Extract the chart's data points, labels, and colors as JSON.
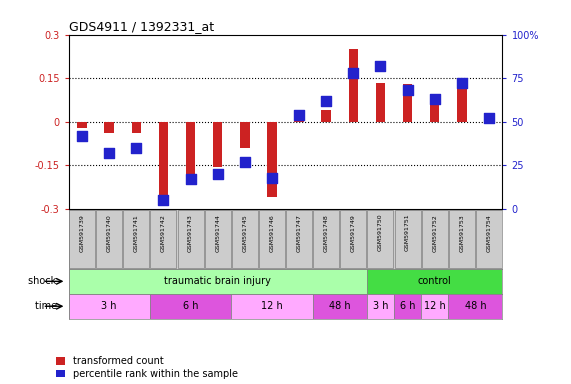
{
  "title": "GDS4911 / 1392331_at",
  "samples": [
    "GSM591739",
    "GSM591740",
    "GSM591741",
    "GSM591742",
    "GSM591743",
    "GSM591744",
    "GSM591745",
    "GSM591746",
    "GSM591747",
    "GSM591748",
    "GSM591749",
    "GSM591750",
    "GSM591751",
    "GSM591752",
    "GSM591753",
    "GSM591754"
  ],
  "red_values": [
    -0.02,
    -0.04,
    -0.04,
    -0.28,
    -0.21,
    -0.155,
    -0.09,
    -0.26,
    0.02,
    0.04,
    0.25,
    0.135,
    0.13,
    0.09,
    0.12,
    0.01
  ],
  "blue_values_pct": [
    42,
    32,
    35,
    5,
    17,
    20,
    27,
    18,
    54,
    62,
    78,
    82,
    68,
    63,
    72,
    52
  ],
  "ylim_left": [
    -0.3,
    0.3
  ],
  "ylim_right": [
    0,
    100
  ],
  "yticks_left": [
    -0.3,
    -0.15,
    0.0,
    0.15,
    0.3
  ],
  "ytick_left_labels": [
    "-0.3",
    "-0.15",
    "0",
    "0.15",
    "0.3"
  ],
  "yticks_right": [
    0,
    25,
    50,
    75,
    100
  ],
  "ytick_right_labels": [
    "0",
    "25",
    "50",
    "75",
    "100%"
  ],
  "hlines": [
    0.15,
    0.0,
    -0.15
  ],
  "red_color": "#cc2222",
  "blue_color": "#2222cc",
  "shock_row": [
    {
      "label": "traumatic brain injury",
      "start": 0,
      "end": 11,
      "color": "#aaffaa"
    },
    {
      "label": "control",
      "start": 11,
      "end": 16,
      "color": "#44dd44"
    }
  ],
  "time_row": [
    {
      "label": "3 h",
      "start": 0,
      "end": 3,
      "color": "#ffaaff"
    },
    {
      "label": "6 h",
      "start": 3,
      "end": 6,
      "color": "#dd55dd"
    },
    {
      "label": "12 h",
      "start": 6,
      "end": 9,
      "color": "#ffaaff"
    },
    {
      "label": "48 h",
      "start": 9,
      "end": 11,
      "color": "#dd55dd"
    },
    {
      "label": "3 h",
      "start": 11,
      "end": 12,
      "color": "#ffaaff"
    },
    {
      "label": "6 h",
      "start": 12,
      "end": 13,
      "color": "#dd55dd"
    },
    {
      "label": "12 h",
      "start": 13,
      "end": 14,
      "color": "#ffaaff"
    },
    {
      "label": "48 h",
      "start": 14,
      "end": 16,
      "color": "#dd55dd"
    }
  ],
  "bar_width": 0.35,
  "blue_square_size": 55,
  "legend_items": [
    {
      "color": "#cc2222",
      "label": "transformed count"
    },
    {
      "color": "#2222cc",
      "label": "percentile rank within the sample"
    }
  ]
}
